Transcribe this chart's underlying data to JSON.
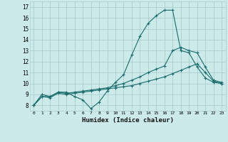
{
  "xlabel": "Humidex (Indice chaleur)",
  "bg_color": "#cceaea",
  "line_color": "#1a6b6b",
  "grid_color": "#aacece",
  "xlim": [
    -0.5,
    23.5
  ],
  "ylim": [
    7.5,
    17.5
  ],
  "xticks": [
    0,
    1,
    2,
    3,
    4,
    5,
    6,
    7,
    8,
    9,
    10,
    11,
    12,
    13,
    14,
    15,
    16,
    17,
    18,
    19,
    20,
    21,
    22,
    23
  ],
  "yticks": [
    8,
    9,
    10,
    11,
    12,
    13,
    14,
    15,
    16,
    17
  ],
  "line1_x": [
    0,
    1,
    2,
    3,
    4,
    5,
    6,
    7,
    8,
    9,
    10,
    11,
    12,
    13,
    14,
    15,
    16,
    17,
    18,
    19,
    20,
    21,
    22,
    23
  ],
  "line1_y": [
    8.0,
    9.0,
    8.8,
    9.2,
    9.2,
    8.8,
    8.5,
    7.7,
    8.3,
    9.3,
    10.1,
    10.8,
    12.6,
    14.3,
    15.5,
    16.2,
    16.7,
    16.7,
    13.0,
    12.8,
    11.5,
    10.5,
    10.1,
    10.0
  ],
  "line2_x": [
    0,
    1,
    2,
    3,
    4,
    5,
    6,
    7,
    8,
    9,
    10,
    11,
    12,
    13,
    14,
    15,
    16,
    17,
    18,
    19,
    20,
    21,
    22,
    23
  ],
  "line2_y": [
    8.0,
    8.8,
    8.8,
    9.2,
    9.1,
    9.2,
    9.3,
    9.4,
    9.5,
    9.6,
    9.8,
    10.0,
    10.3,
    10.6,
    11.0,
    11.3,
    11.6,
    13.0,
    13.3,
    13.0,
    12.8,
    11.5,
    10.3,
    10.1
  ],
  "line3_x": [
    0,
    1,
    2,
    3,
    4,
    5,
    6,
    7,
    8,
    9,
    10,
    11,
    12,
    13,
    14,
    15,
    16,
    17,
    18,
    19,
    20,
    21,
    22,
    23
  ],
  "line3_y": [
    8.0,
    8.8,
    8.7,
    9.1,
    9.0,
    9.1,
    9.2,
    9.3,
    9.4,
    9.5,
    9.6,
    9.7,
    9.8,
    10.0,
    10.2,
    10.4,
    10.6,
    10.9,
    11.2,
    11.5,
    11.8,
    11.0,
    10.2,
    10.0
  ]
}
